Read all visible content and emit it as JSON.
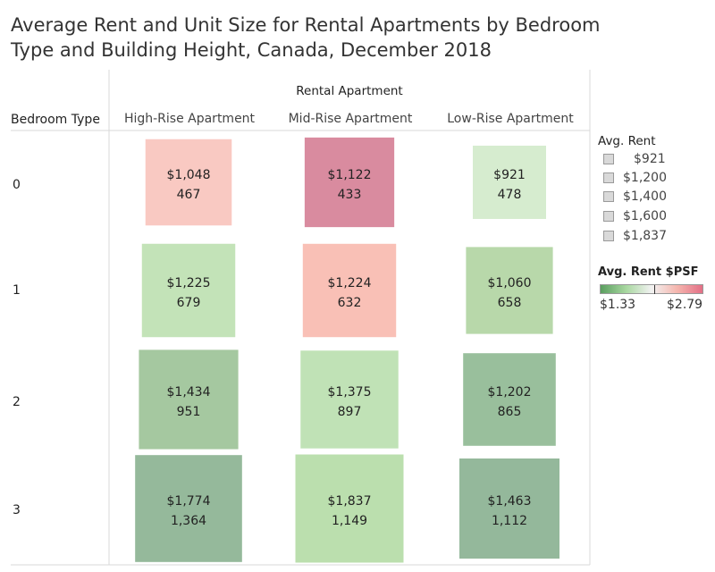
{
  "title_line1": "Average Rent and Unit Size for Rental Apartments by Bedroom",
  "title_line2": "Type and Building Height, Canada, December 2018",
  "column_group_header": "Rental Apartment",
  "row_header_title": "Bedroom Type",
  "size_legend": {
    "title": "Avg. Rent",
    "items": [
      "$921",
      "$1,200",
      "$1,400",
      "$1,600",
      "$1,837"
    ]
  },
  "color_legend": {
    "title": "Avg. Rent $PSF",
    "min_label": "$1.33",
    "max_label": "$2.79",
    "gradient_colors": [
      "#5a9e5f",
      "#a8d7a0",
      "#f2f2f2",
      "#f5b6ae",
      "#e36f86"
    ]
  },
  "chart_data": {
    "type": "heatmap",
    "title": "Average Rent and Unit Size for Rental Apartments by Bedroom Type and Building Height, Canada, December 2018",
    "columns": [
      "High-Rise Apartment",
      "Mid-Rise Apartment",
      "Low-Rise Apartment"
    ],
    "rows": [
      "0",
      "1",
      "2",
      "3"
    ],
    "cells": [
      [
        {
          "rent": "$1,048",
          "size": "467",
          "rent_value": 1048,
          "color": "#f9c9c2"
        },
        {
          "rent": "$1,122",
          "size": "433",
          "rent_value": 1122,
          "color": "#d98b9f"
        },
        {
          "rent": "$921",
          "size": "478",
          "rent_value": 921,
          "color": "#d6eccf"
        }
      ],
      [
        {
          "rent": "$1,225",
          "size": "679",
          "rent_value": 1225,
          "color": "#c3e3b8"
        },
        {
          "rent": "$1,224",
          "size": "632",
          "rent_value": 1224,
          "color": "#f9c0b6"
        },
        {
          "rent": "$1,060",
          "size": "658",
          "rent_value": 1060,
          "color": "#b8d8aa"
        }
      ],
      [
        {
          "rent": "$1,434",
          "size": "951",
          "rent_value": 1434,
          "color": "#a5c8a0"
        },
        {
          "rent": "$1,375",
          "size": "897",
          "rent_value": 1375,
          "color": "#c0e2b6"
        },
        {
          "rent": "$1,202",
          "size": "865",
          "rent_value": 1202,
          "color": "#99bf9c"
        }
      ],
      [
        {
          "rent": "$1,774",
          "size": "1,364",
          "rent_value": 1774,
          "color": "#95b99b"
        },
        {
          "rent": "$1,837",
          "size": "1,149",
          "rent_value": 1837,
          "color": "#bbdfae"
        },
        {
          "rent": "$1,463",
          "size": "1,112",
          "rent_value": 1463,
          "color": "#94b89b"
        }
      ]
    ],
    "size_encodes": "Avg. Rent",
    "color_encodes": "Avg. Rent $PSF",
    "color_range": [
      1.33,
      2.79
    ]
  }
}
